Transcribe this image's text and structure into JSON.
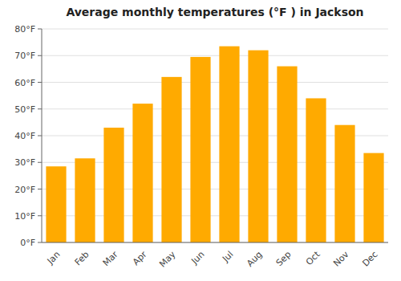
{
  "chart_data": {
    "type": "bar",
    "title": "Average monthly temperatures (°F ) in Jackson",
    "categories": [
      "Jan",
      "Feb",
      "Mar",
      "Apr",
      "May",
      "Jun",
      "Jul",
      "Aug",
      "Sep",
      "Oct",
      "Nov",
      "Dec"
    ],
    "values": [
      28.5,
      31.5,
      43,
      52,
      62,
      69.5,
      73.5,
      72,
      66,
      54,
      44,
      33.5
    ],
    "color": "#FFAA00",
    "ylim": [
      0,
      80
    ],
    "yticks": [
      {
        "value": 0,
        "label": "0°F"
      },
      {
        "value": 10,
        "label": "10°F"
      },
      {
        "value": 20,
        "label": "20°F"
      },
      {
        "value": 30,
        "label": "30°F"
      },
      {
        "value": 40,
        "label": "40°F"
      },
      {
        "value": 50,
        "label": "50°F"
      },
      {
        "value": 60,
        "label": "60°F"
      },
      {
        "value": 70,
        "label": "70°F"
      },
      {
        "value": 80,
        "label": "80°F"
      }
    ],
    "grid": true
  }
}
